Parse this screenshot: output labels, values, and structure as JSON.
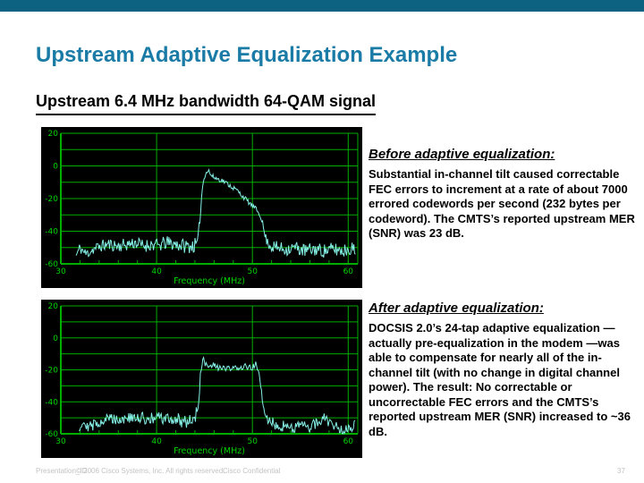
{
  "slide": {
    "title": "Upstream Adaptive Equalization Example",
    "subtitle": "Upstream 6.4 MHz bandwidth 64-QAM signal",
    "title_color": "#1a7ca6",
    "topbar_color": "#0d6282"
  },
  "before": {
    "heading": "Before adaptive equalization:",
    "body": "Substantial in-channel tilt caused correctable FEC errors to increment at a rate of about 7000 errored codewords per second (232 bytes per codeword). The CMTS’s reported upstream MER (SNR) was 23 dB."
  },
  "after": {
    "heading": "After adaptive equalization:",
    "body": "DOCSIS 2.0’s 24-tap adaptive equalization —actually pre-equalization in the modem —was able to compensate for nearly all of the in-channel tilt (with no change in digital channel power). The result: No correctable or uncorrectable FEC errors and the CMTS’s reported upstream MER (SNR) increased to ~36 dB."
  },
  "footer": {
    "presentation_id": "Presentation_ID",
    "copyright": "© 2006 Cisco Systems, Inc. All rights reserved.",
    "confidential": "Cisco Confidential",
    "page_number": "37"
  },
  "chart_data": [
    {
      "type": "line",
      "name": "upstream-spectrum-before-equalization",
      "title": "",
      "xlabel": "Frequency (MHz)",
      "ylabel": "",
      "xlim": [
        30,
        61
      ],
      "ylim": [
        -60,
        20
      ],
      "xticks": [
        30,
        40,
        50,
        60
      ],
      "yticks": [
        20,
        0,
        -20,
        -40,
        -60
      ],
      "grid_step_db": 10,
      "minor_tick_step_mhz": 2,
      "grid": true,
      "legend": false,
      "colors": {
        "background": "#000000",
        "grid": "#00ae00",
        "labels": "#00d400",
        "trace": "#85f0e6"
      },
      "description": "Noise floor near -50 dB; 6.4 MHz wide 64-QAM channel from ~44.6 to ~51 MHz with substantial in-channel tilt sloping from ~0 dB at 45.5 MHz down to ~-30 dB at 51 MHz",
      "seed": 11,
      "step": 0.085,
      "envelope": [
        [
          31.6,
          -55
        ],
        [
          32.0,
          -50
        ],
        [
          32.6,
          -54
        ],
        [
          33.4,
          -51
        ],
        [
          34.2,
          -49
        ],
        [
          35.0,
          -48
        ],
        [
          36.0,
          -49
        ],
        [
          37.0,
          -48
        ],
        [
          37.8,
          -47
        ],
        [
          38.6,
          -49
        ],
        [
          39.4,
          -48
        ],
        [
          40.2,
          -49
        ],
        [
          41.0,
          -47
        ],
        [
          42.0,
          -48
        ],
        [
          43.0,
          -49
        ],
        [
          43.8,
          -49
        ],
        [
          44.3,
          -48
        ],
        [
          44.55,
          -30
        ],
        [
          44.8,
          -12
        ],
        [
          45.1,
          -4
        ],
        [
          45.45,
          -3
        ],
        [
          45.7,
          -6
        ],
        [
          46.0,
          -7
        ],
        [
          46.4,
          -8
        ],
        [
          46.9,
          -9
        ],
        [
          47.4,
          -11
        ],
        [
          47.9,
          -13
        ],
        [
          48.4,
          -15
        ],
        [
          48.9,
          -18
        ],
        [
          49.4,
          -21
        ],
        [
          49.9,
          -24
        ],
        [
          50.3,
          -26
        ],
        [
          50.7,
          -29
        ],
        [
          51.0,
          -33
        ],
        [
          51.2,
          -40
        ],
        [
          51.5,
          -46
        ],
        [
          51.9,
          -49
        ],
        [
          52.5,
          -50
        ],
        [
          53.5,
          -51
        ],
        [
          54.5,
          -50
        ],
        [
          55.5,
          -52
        ],
        [
          56.5,
          -51
        ],
        [
          57.5,
          -52
        ],
        [
          58.5,
          -51
        ],
        [
          59.5,
          -52
        ],
        [
          60.3,
          -50
        ],
        [
          60.8,
          -53
        ]
      ],
      "noise_amp": [
        [
          31.6,
          3.5
        ],
        [
          44.3,
          4.5
        ],
        [
          44.7,
          2
        ],
        [
          45.2,
          1.5
        ],
        [
          50.8,
          1.5
        ],
        [
          51.4,
          2.5
        ],
        [
          52.0,
          4
        ],
        [
          60.8,
          4.5
        ]
      ]
    },
    {
      "type": "line",
      "name": "upstream-spectrum-after-equalization",
      "title": "",
      "xlabel": "Frequency (MHz)",
      "ylabel": "",
      "xlim": [
        30,
        61
      ],
      "ylim": [
        -60,
        20
      ],
      "xticks": [
        30,
        40,
        50,
        60
      ],
      "yticks": [
        20,
        0,
        -20,
        -40,
        -60
      ],
      "grid_step_db": 10,
      "minor_tick_step_mhz": 2,
      "grid": true,
      "legend": false,
      "colors": {
        "background": "#000000",
        "grid": "#00ae00",
        "labels": "#00d400",
        "trace": "#85f0e6"
      },
      "description": "After 24-tap adaptive pre-equalization: same channel from ~44.6 to ~50.6 MHz now flat at about -18 dB (tilt removed), noise floor near -52 dB",
      "seed": 29,
      "step": 0.085,
      "envelope": [
        [
          31.9,
          -56
        ],
        [
          32.4,
          -52
        ],
        [
          33.0,
          -56
        ],
        [
          33.8,
          -53
        ],
        [
          34.6,
          -51
        ],
        [
          35.4,
          -50
        ],
        [
          36.2,
          -51
        ],
        [
          37.0,
          -50
        ],
        [
          37.8,
          -51
        ],
        [
          38.6,
          -50
        ],
        [
          39.4,
          -51
        ],
        [
          40.2,
          -50
        ],
        [
          41.0,
          -51
        ],
        [
          42.0,
          -51
        ],
        [
          43.0,
          -52
        ],
        [
          43.9,
          -51
        ],
        [
          44.35,
          -45
        ],
        [
          44.6,
          -20
        ],
        [
          44.85,
          -13
        ],
        [
          45.1,
          -17
        ],
        [
          45.5,
          -19
        ],
        [
          45.9,
          -17
        ],
        [
          46.3,
          -19
        ],
        [
          46.7,
          -18
        ],
        [
          47.1,
          -20
        ],
        [
          47.5,
          -19
        ],
        [
          48.0,
          -20
        ],
        [
          48.4,
          -18
        ],
        [
          48.8,
          -19
        ],
        [
          49.2,
          -18
        ],
        [
          49.7,
          -19
        ],
        [
          50.1,
          -18
        ],
        [
          50.4,
          -16
        ],
        [
          50.6,
          -20
        ],
        [
          50.85,
          -30
        ],
        [
          51.1,
          -42
        ],
        [
          51.4,
          -50
        ],
        [
          52.0,
          -53
        ],
        [
          53.0,
          -55
        ],
        [
          54.0,
          -56
        ],
        [
          55.0,
          -55
        ],
        [
          56.0,
          -56
        ],
        [
          56.8,
          -53
        ],
        [
          57.4,
          -50
        ],
        [
          57.9,
          -52
        ],
        [
          58.6,
          -55
        ],
        [
          59.4,
          -57
        ],
        [
          60.2,
          -56
        ],
        [
          60.8,
          -54
        ]
      ],
      "noise_amp": [
        [
          31.9,
          3.5
        ],
        [
          44.2,
          4.5
        ],
        [
          44.7,
          2
        ],
        [
          45.2,
          2
        ],
        [
          50.4,
          2
        ],
        [
          51.3,
          2.5
        ],
        [
          52.0,
          3.5
        ],
        [
          60.8,
          3.5
        ]
      ]
    }
  ]
}
